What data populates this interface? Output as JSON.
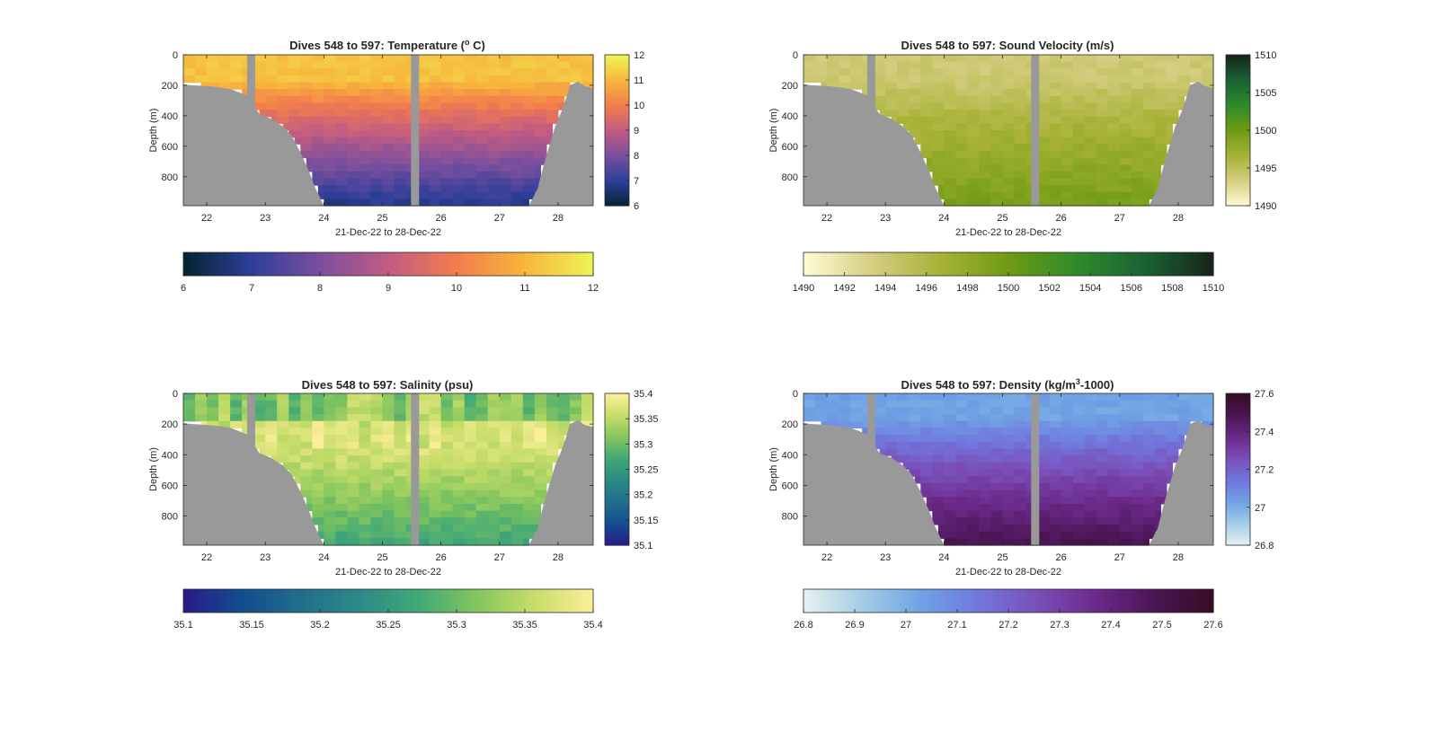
{
  "figure": {
    "background": "#ffffff",
    "colors": {
      "land": "#999999",
      "frame": "#262626"
    }
  },
  "chart_data": [
    {
      "type": "heatmap",
      "id": "temperature",
      "title": "Dives 548 to 597: Temperature (",
      "title_sup": "o",
      "title_tail": " C)",
      "xlabel": "21-Dec-22 to 28-Dec-22",
      "ylabel": "Depth (m)",
      "x_ticks": [
        "22",
        "23",
        "24",
        "25",
        "26",
        "27",
        "28"
      ],
      "x_tick_values": [
        22,
        23,
        24,
        25,
        26,
        27,
        28
      ],
      "xlim": [
        21.6,
        28.6
      ],
      "y_ticks": [
        "0",
        "200",
        "400",
        "600",
        "800"
      ],
      "y_tick_values": [
        0,
        200,
        400,
        600,
        800
      ],
      "ylim": [
        0,
        990
      ],
      "y_reversed": true,
      "colormap": "thermal",
      "colormap_stops": [
        "#04232f",
        "#2e3f9a",
        "#7a4f9e",
        "#c25c82",
        "#f37d4c",
        "#f7b63c",
        "#eef556"
      ],
      "clim": [
        6,
        12
      ],
      "side_colorbar_ticks": [
        "6",
        "7",
        "8",
        "9",
        "10",
        "11",
        "12"
      ],
      "side_colorbar_values": [
        6,
        7,
        8,
        9,
        10,
        11,
        12
      ],
      "bottom_colorbar_ticks": [
        "6",
        "7",
        "8",
        "9",
        "10",
        "11",
        "12"
      ],
      "bottom_colorbar_values": [
        6,
        7,
        8,
        9,
        10,
        11,
        12
      ],
      "surface_value": 11.2,
      "deep_value": 6.8,
      "gap_days": [
        22.75,
        25.55
      ]
    },
    {
      "type": "heatmap",
      "id": "sound-velocity",
      "title": "Dives 548 to 597: Sound Velocity (m/s)",
      "xlabel": "21-Dec-22 to 28-Dec-22",
      "ylabel": "Depth (m)",
      "x_ticks": [
        "22",
        "23",
        "24",
        "25",
        "26",
        "27",
        "28"
      ],
      "x_tick_values": [
        22,
        23,
        24,
        25,
        26,
        27,
        28
      ],
      "xlim": [
        21.6,
        28.6
      ],
      "y_ticks": [
        "0",
        "200",
        "400",
        "600",
        "800"
      ],
      "y_tick_values": [
        0,
        200,
        400,
        600,
        800
      ],
      "ylim": [
        0,
        990
      ],
      "y_reversed": true,
      "colormap": "speed",
      "colormap_stops": [
        "#fffcd6",
        "#d6ce82",
        "#a7b236",
        "#6f9b14",
        "#2f8a2a",
        "#1b6234",
        "#16241a"
      ],
      "clim": [
        1490,
        1510
      ],
      "side_colorbar_ticks": [
        "1490",
        "1495",
        "1500",
        "1505",
        "1510"
      ],
      "side_colorbar_values": [
        1490,
        1495,
        1500,
        1505,
        1510
      ],
      "bottom_colorbar_ticks": [
        "1490",
        "1492",
        "1494",
        "1496",
        "1498",
        "1500",
        "1502",
        "1504",
        "1506",
        "1508",
        "1510"
      ],
      "bottom_colorbar_values": [
        1490,
        1492,
        1494,
        1496,
        1498,
        1500,
        1502,
        1504,
        1506,
        1508,
        1510
      ],
      "surface_value": 1494.0,
      "deep_value": 1499.5,
      "gap_days": [
        22.75,
        25.55
      ]
    },
    {
      "type": "heatmap",
      "id": "salinity",
      "title": "Dives 548 to 597: Salinity (psu)",
      "xlabel": "21-Dec-22 to 28-Dec-22",
      "ylabel": "Depth (m)",
      "x_ticks": [
        "22",
        "23",
        "24",
        "25",
        "26",
        "27",
        "28"
      ],
      "x_tick_values": [
        22,
        23,
        24,
        25,
        26,
        27,
        28
      ],
      "xlim": [
        21.6,
        28.6
      ],
      "y_ticks": [
        "0",
        "200",
        "400",
        "600",
        "800"
      ],
      "y_tick_values": [
        0,
        200,
        400,
        600,
        800
      ],
      "ylim": [
        0,
        990
      ],
      "y_reversed": true,
      "colormap": "haline",
      "colormap_stops": [
        "#2a1a8a",
        "#124d8f",
        "#206e8b",
        "#2b8a87",
        "#41a877",
        "#82c55d",
        "#c7dd6a",
        "#fdef9a"
      ],
      "clim": [
        35.1,
        35.4
      ],
      "side_colorbar_ticks": [
        "35.1",
        "35.15",
        "35.2",
        "35.25",
        "35.3",
        "35.35",
        "35.4"
      ],
      "side_colorbar_values": [
        35.1,
        35.15,
        35.2,
        35.25,
        35.3,
        35.35,
        35.4
      ],
      "bottom_colorbar_ticks": [
        "35.1",
        "35.15",
        "35.2",
        "35.25",
        "35.3",
        "35.35",
        "35.4"
      ],
      "bottom_colorbar_values": [
        35.1,
        35.15,
        35.2,
        35.25,
        35.3,
        35.35,
        35.4
      ],
      "surface_value": 35.32,
      "mid_value": 35.37,
      "deep_value": 35.27,
      "gap_days": [
        22.75,
        25.55
      ]
    },
    {
      "type": "heatmap",
      "id": "density",
      "title": "Dives 548 to 597: Density (kg/m",
      "title_sup": "3",
      "title_tail": "-1000)",
      "xlabel": "21-Dec-22 to 28-Dec-22",
      "ylabel": "Depth (m)",
      "x_ticks": [
        "22",
        "23",
        "24",
        "25",
        "26",
        "27",
        "28"
      ],
      "x_tick_values": [
        22,
        23,
        24,
        25,
        26,
        27,
        28
      ],
      "xlim": [
        21.6,
        28.6
      ],
      "y_ticks": [
        "0",
        "200",
        "400",
        "600",
        "800"
      ],
      "y_tick_values": [
        0,
        200,
        400,
        600,
        800
      ],
      "ylim": [
        0,
        990
      ],
      "y_reversed": true,
      "colormap": "dense",
      "colormap_stops": [
        "#e6f1f1",
        "#a6cde6",
        "#6fa3e4",
        "#7177dd",
        "#7a4fb8",
        "#6b2a8a",
        "#4b1555",
        "#360d24"
      ],
      "clim": [
        26.8,
        27.6
      ],
      "side_colorbar_ticks": [
        "26.8",
        "27",
        "27.2",
        "27.4",
        "27.6"
      ],
      "side_colorbar_values": [
        26.8,
        27.0,
        27.2,
        27.4,
        27.6
      ],
      "bottom_colorbar_ticks": [
        "26.8",
        "26.9",
        "27",
        "27.1",
        "27.2",
        "27.3",
        "27.4",
        "27.5",
        "27.6"
      ],
      "bottom_colorbar_values": [
        26.8,
        26.9,
        27.0,
        27.1,
        27.2,
        27.3,
        27.4,
        27.5,
        27.6
      ],
      "surface_value": 27.03,
      "deep_value": 27.5,
      "gap_days": [
        22.75,
        25.55
      ]
    }
  ],
  "bottom_depth": {
    "days": [
      21.6,
      21.75,
      22.0,
      22.25,
      22.4,
      22.55,
      22.7,
      22.9,
      23.1,
      23.3,
      23.45,
      23.6,
      23.75,
      23.85,
      24.0,
      24.5,
      25.0,
      25.5,
      26.0,
      26.5,
      27.0,
      27.5,
      27.65,
      27.75,
      27.85,
      27.95,
      28.05,
      28.15,
      28.2,
      28.35,
      28.45,
      28.6
    ],
    "depths": [
      195,
      200,
      205,
      215,
      225,
      245,
      270,
      390,
      420,
      470,
      530,
      640,
      770,
      870,
      990,
      990,
      990,
      990,
      990,
      990,
      990,
      990,
      880,
      730,
      600,
      470,
      380,
      270,
      200,
      175,
      205,
      220
    ]
  }
}
